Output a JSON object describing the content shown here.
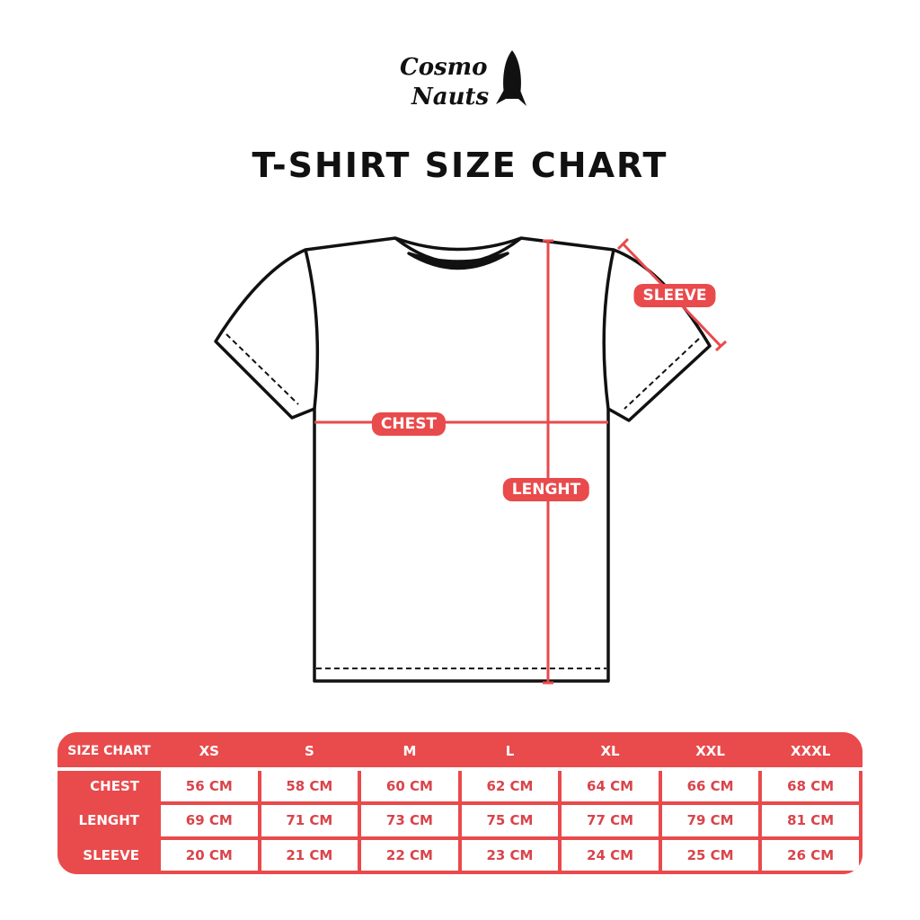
{
  "brand": {
    "logo_text": "Cosmo Nauts",
    "icon": "rocket-icon"
  },
  "title": "T-SHIRT SIZE CHART",
  "colors": {
    "accent": "#e94a4c",
    "outline": "#111111"
  },
  "diagram_labels": {
    "chest": "CHEST",
    "length": "LENGHT",
    "sleeve": "SLEEVE"
  },
  "chart_data": {
    "type": "table",
    "columns": [
      "SIZE CHART",
      "XS",
      "S",
      "M",
      "L",
      "XL",
      "XXL",
      "XXXL"
    ],
    "rows": [
      {
        "label": "CHEST",
        "values": [
          "56 CM",
          "58 CM",
          "60 CM",
          "62 CM",
          "64 CM",
          "66 CM",
          "68 CM"
        ]
      },
      {
        "label": "LENGHT",
        "values": [
          "69 CM",
          "71 CM",
          "73 CM",
          "75 CM",
          "77 CM",
          "79 CM",
          "81 CM"
        ]
      },
      {
        "label": "SLEEVE",
        "values": [
          "20 CM",
          "21 CM",
          "22 CM",
          "23 CM",
          "24 CM",
          "25 CM",
          "26 CM"
        ]
      }
    ]
  }
}
